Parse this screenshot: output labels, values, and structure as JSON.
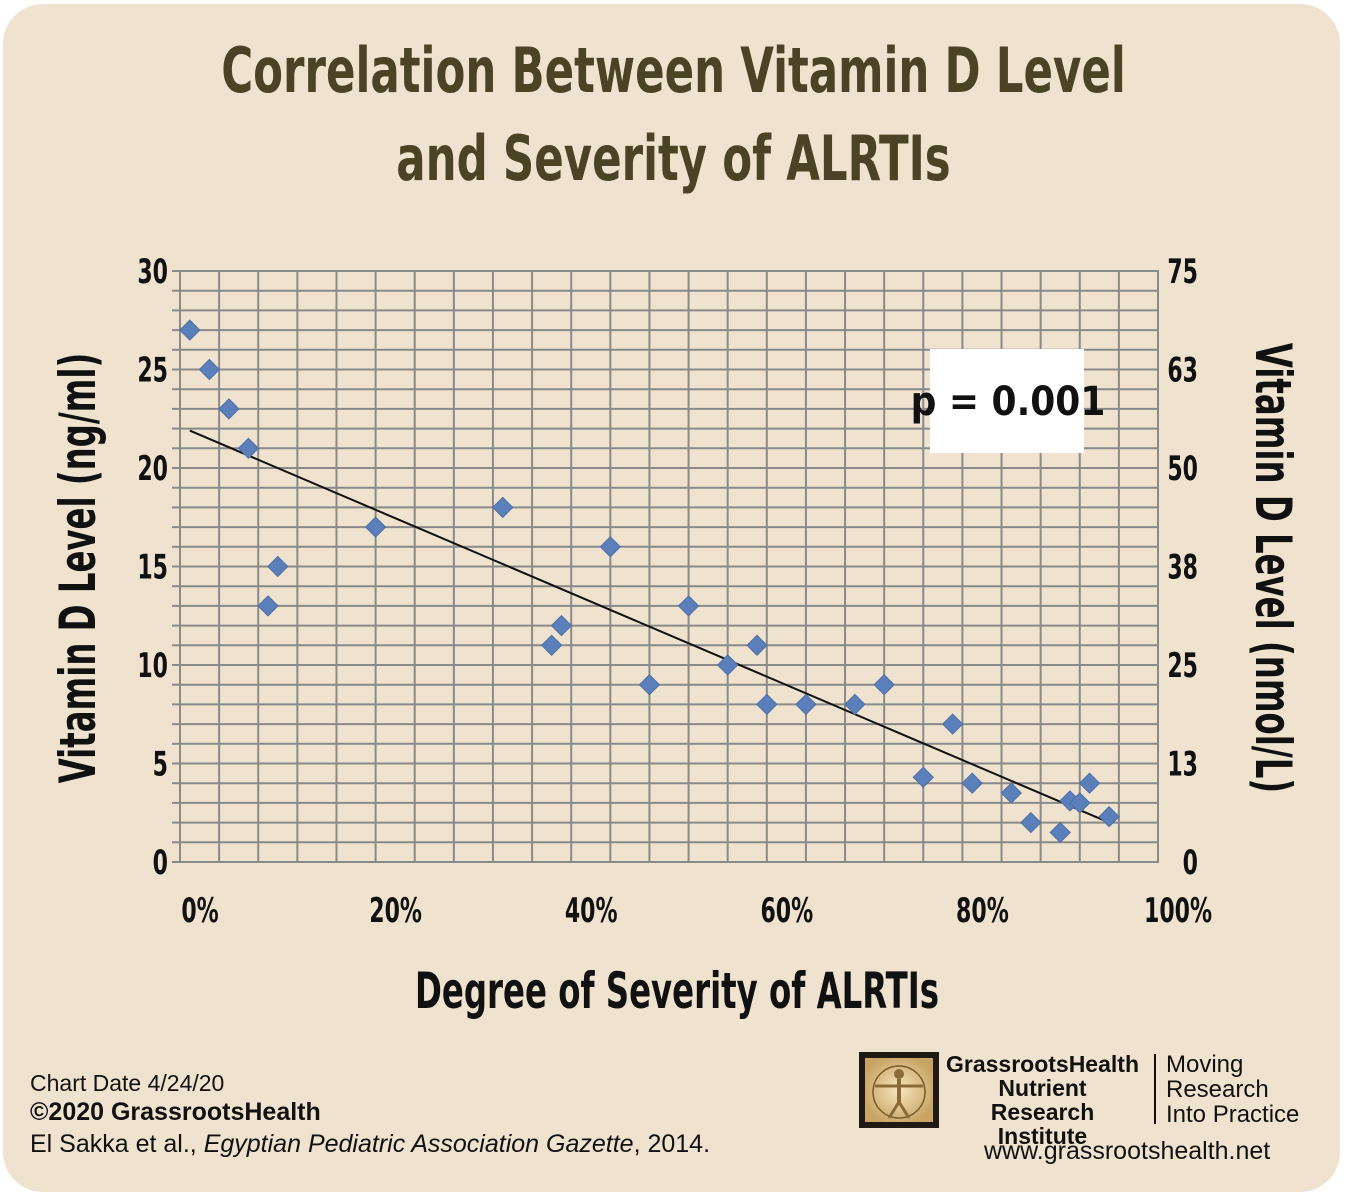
{
  "title_line1": "Correlation Between Vitamin D Level",
  "title_line2": "and Severity of ALRTIs",
  "chart_data": {
    "type": "scatter",
    "title": "Correlation Between Vitamin D Level and Severity of ALRTIs",
    "xlabel": "Degree of Severity of ALRTIs",
    "ylabel": "Vitamin D Level (ng/ml)",
    "y2label": "Vitamin D Level (nmol/L)",
    "xlim": [
      0,
      100
    ],
    "ylim": [
      0,
      30
    ],
    "x_ticks": [
      "0%",
      "20%",
      "40%",
      "60%",
      "80%",
      "100%"
    ],
    "y_ticks": [
      "0",
      "5",
      "10",
      "15",
      "20",
      "25",
      "30"
    ],
    "y2_ticks": [
      "0",
      "13",
      "25",
      "38",
      "50",
      "63",
      "75"
    ],
    "grid": true,
    "annotation": "p = 0.001",
    "marker_color": "#5b7fba",
    "points": [
      {
        "x": 1,
        "y": 27
      },
      {
        "x": 3,
        "y": 25
      },
      {
        "x": 5,
        "y": 23
      },
      {
        "x": 7,
        "y": 21
      },
      {
        "x": 9,
        "y": 13
      },
      {
        "x": 10,
        "y": 15
      },
      {
        "x": 20,
        "y": 17
      },
      {
        "x": 33,
        "y": 18
      },
      {
        "x": 38,
        "y": 11
      },
      {
        "x": 39,
        "y": 12
      },
      {
        "x": 44,
        "y": 16
      },
      {
        "x": 48,
        "y": 9
      },
      {
        "x": 52,
        "y": 13
      },
      {
        "x": 56,
        "y": 10
      },
      {
        "x": 59,
        "y": 11
      },
      {
        "x": 60,
        "y": 8
      },
      {
        "x": 64,
        "y": 8
      },
      {
        "x": 69,
        "y": 8
      },
      {
        "x": 72,
        "y": 9
      },
      {
        "x": 76,
        "y": 4.3
      },
      {
        "x": 79,
        "y": 7
      },
      {
        "x": 81,
        "y": 4
      },
      {
        "x": 85,
        "y": 3.5
      },
      {
        "x": 87,
        "y": 2
      },
      {
        "x": 90,
        "y": 1.5
      },
      {
        "x": 91,
        "y": 3.1
      },
      {
        "x": 92,
        "y": 3
      },
      {
        "x": 93,
        "y": 4
      },
      {
        "x": 95,
        "y": 2.3
      }
    ],
    "trendline": {
      "x": [
        1,
        95
      ],
      "y": [
        21.9,
        2.0
      ]
    }
  },
  "footer": {
    "chart_date": "Chart Date 4/24/20",
    "copyright": "©2020 GrassrootsHealth",
    "citation_authors": "El Sakka et al., ",
    "citation_journal": "Egyptian Pediatric Association Gazette",
    "citation_year": ", 2014."
  },
  "logo": {
    "line1": "GrassrootsHealth",
    "line2": "Nutrient",
    "line3": "Research Institute",
    "tagline1": "Moving",
    "tagline2": "Research",
    "tagline3": "Into Practice",
    "website": "www.grassrootshealth.net",
    "icon": "vitruvian-man-icon"
  }
}
